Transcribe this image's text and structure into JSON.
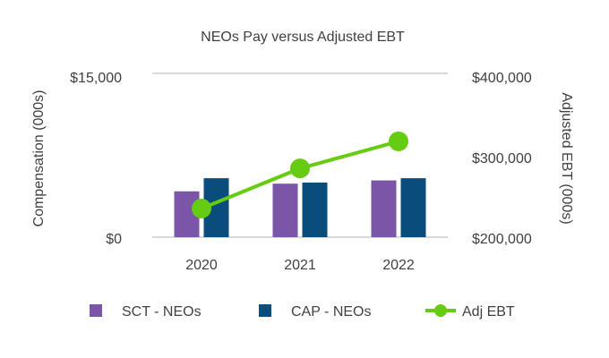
{
  "chart_data": {
    "type": "bar",
    "title": "NEOs Pay versus Adjusted EBT",
    "categories": [
      "2020",
      "2021",
      "2022"
    ],
    "series": [
      {
        "name": "SCT - NEOs",
        "type": "bar",
        "axis": "left",
        "values": [
          4200,
          4900,
          5200
        ],
        "color": "#7b56a8"
      },
      {
        "name": "CAP - NEOs",
        "type": "bar",
        "axis": "left",
        "values": [
          5400,
          5000,
          5400
        ],
        "color": "#0a4c7c"
      },
      {
        "name": "Adj EBT",
        "type": "line",
        "axis": "right",
        "values": [
          235000,
          284000,
          317000
        ],
        "color": "#66cc11"
      }
    ],
    "ylabel_left": "Compensation (000s)",
    "ylabel_right": "Adjusted EBT (000s)",
    "ylim_left": [
      0,
      15000
    ],
    "ylim_right": [
      200000,
      400000
    ],
    "yticks_left": [
      "$0",
      "$15,000"
    ],
    "yticks_right": [
      "$200,000",
      "$300,000",
      "$400,000"
    ],
    "legend_position": "bottom"
  },
  "colors": {
    "text": "#404040",
    "grid": "#d9d9d9"
  }
}
